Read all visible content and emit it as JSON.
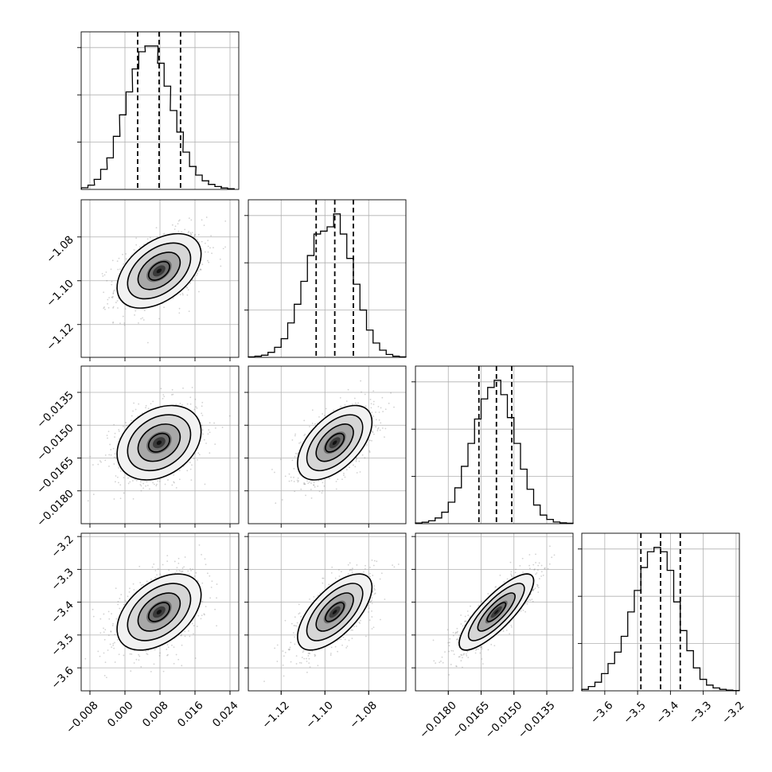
{
  "chart_data": {
    "type": "corner",
    "title": "",
    "parameters": [
      {
        "index": 0,
        "range": [
          -0.01,
          0.026
        ],
        "ticks": [
          -0.008,
          0.0,
          0.008,
          0.016,
          0.024
        ],
        "tick_labels": [
          "−0.008",
          "0.000",
          "0.008",
          "0.016",
          "0.024"
        ],
        "mean": 0.0078,
        "sigma": 0.0048,
        "quantiles": [
          0.0029,
          0.0078,
          0.0127
        ],
        "hist_centers": [
          -0.0092,
          -0.0077,
          -0.0063,
          -0.0048,
          -0.0034,
          -0.0019,
          -0.0005,
          0.001,
          0.0024,
          0.0039,
          0.0053,
          0.0068,
          0.0082,
          0.0097,
          0.0111,
          0.0126,
          0.014,
          0.0155,
          0.0169,
          0.0184,
          0.0198,
          0.0213,
          0.0227,
          0.0242
        ],
        "hist_counts": [
          0.012,
          0.03,
          0.07,
          0.14,
          0.22,
          0.37,
          0.52,
          0.68,
          0.84,
          0.96,
          1.0,
          1.0,
          0.88,
          0.72,
          0.55,
          0.4,
          0.26,
          0.16,
          0.1,
          0.06,
          0.035,
          0.02,
          0.01,
          0.005
        ]
      },
      {
        "index": 1,
        "range": [
          -1.135,
          -1.063
        ],
        "ticks": [
          -1.12,
          -1.1,
          -1.08
        ],
        "tick_labels": [
          "−1.12",
          "−1.10",
          "−1.08"
        ],
        "mean": -1.0955,
        "sigma": 0.0085,
        "quantiles": [
          -1.104,
          -1.0955,
          -1.087
        ],
        "hist_centers": [
          -1.1335,
          -1.1305,
          -1.1275,
          -1.1245,
          -1.1215,
          -1.1185,
          -1.1155,
          -1.1125,
          -1.1095,
          -1.1065,
          -1.1035,
          -1.1005,
          -1.0975,
          -1.0945,
          -1.0915,
          -1.0885,
          -1.0855,
          -1.0825,
          -1.0795,
          -1.0765,
          -1.0735,
          -1.0705,
          -1.0675,
          -1.0645
        ],
        "hist_counts": [
          0.003,
          0.008,
          0.015,
          0.035,
          0.07,
          0.13,
          0.24,
          0.37,
          0.53,
          0.71,
          0.86,
          0.88,
          0.91,
          1.0,
          0.86,
          0.69,
          0.51,
          0.33,
          0.19,
          0.1,
          0.05,
          0.02,
          0.008,
          0.003
        ]
      },
      {
        "index": 2,
        "range": [
          -0.0195,
          -0.0123
        ],
        "ticks": [
          -0.018,
          -0.0165,
          -0.015,
          -0.0135
        ],
        "tick_labels": [
          "−0.0180",
          "−0.0165",
          "−0.0150",
          "−0.0135"
        ],
        "mean": -0.0158,
        "sigma": 0.00085,
        "quantiles": [
          -0.0166,
          -0.0158,
          -0.0151
        ],
        "hist_centers": [
          -0.01935,
          -0.01905,
          -0.01875,
          -0.01845,
          -0.01815,
          -0.01785,
          -0.01755,
          -0.01725,
          -0.01695,
          -0.01665,
          -0.01635,
          -0.01605,
          -0.01575,
          -0.01545,
          -0.01515,
          -0.01485,
          -0.01455,
          -0.01425,
          -0.01395,
          -0.01365,
          -0.01335,
          -0.01305,
          -0.01275,
          -0.01245
        ],
        "hist_counts": [
          0.005,
          0.01,
          0.02,
          0.04,
          0.08,
          0.15,
          0.25,
          0.4,
          0.56,
          0.73,
          0.87,
          0.95,
          1.0,
          0.9,
          0.74,
          0.56,
          0.38,
          0.24,
          0.13,
          0.06,
          0.03,
          0.012,
          0.006,
          0.003
        ]
      },
      {
        "index": 3,
        "range": [
          -3.67,
          -3.19
        ],
        "ticks": [
          -3.6,
          -3.5,
          -3.4,
          -3.3,
          -3.2
        ],
        "tick_labels": [
          "−3.6",
          "−3.5",
          "−3.4",
          "−3.3",
          "−3.2"
        ],
        "mean": -3.43,
        "sigma": 0.058,
        "quantiles": [
          -3.49,
          -3.43,
          -3.37
        ],
        "hist_centers": [
          -3.66,
          -3.64,
          -3.62,
          -3.6,
          -3.58,
          -3.56,
          -3.54,
          -3.52,
          -3.5,
          -3.48,
          -3.46,
          -3.44,
          -3.42,
          -3.4,
          -3.38,
          -3.36,
          -3.34,
          -3.32,
          -3.3,
          -3.28,
          -3.26,
          -3.24,
          -3.22,
          -3.2
        ],
        "hist_counts": [
          0.01,
          0.03,
          0.06,
          0.12,
          0.19,
          0.27,
          0.38,
          0.55,
          0.7,
          0.86,
          0.97,
          1.0,
          0.97,
          0.84,
          0.62,
          0.42,
          0.28,
          0.16,
          0.08,
          0.04,
          0.02,
          0.01,
          0.005,
          0.002
        ]
      }
    ],
    "pairs": [
      {
        "x": 0,
        "y": 1,
        "center": [
          0.0078,
          -1.0955
        ],
        "correlation": 0.45
      },
      {
        "x": 0,
        "y": 2,
        "center": [
          0.0078,
          -0.0158
        ],
        "correlation": 0.3
      },
      {
        "x": 1,
        "y": 2,
        "center": [
          -1.0955,
          -0.0158
        ],
        "correlation": 0.55
      },
      {
        "x": 0,
        "y": 3,
        "center": [
          0.0078,
          -3.43
        ],
        "correlation": 0.45
      },
      {
        "x": 1,
        "y": 3,
        "center": [
          -1.0955,
          -3.43
        ],
        "correlation": 0.65
      },
      {
        "x": 2,
        "y": 3,
        "center": [
          -0.0158,
          -3.43
        ],
        "correlation": 0.82
      }
    ],
    "contour_levels_sigma": [
      0.5,
      1.0,
      1.5,
      2.0
    ],
    "grid": true,
    "colors": {
      "line": "#000000",
      "grid": "#b0b0b0",
      "points": "#7f7f7f"
    }
  }
}
